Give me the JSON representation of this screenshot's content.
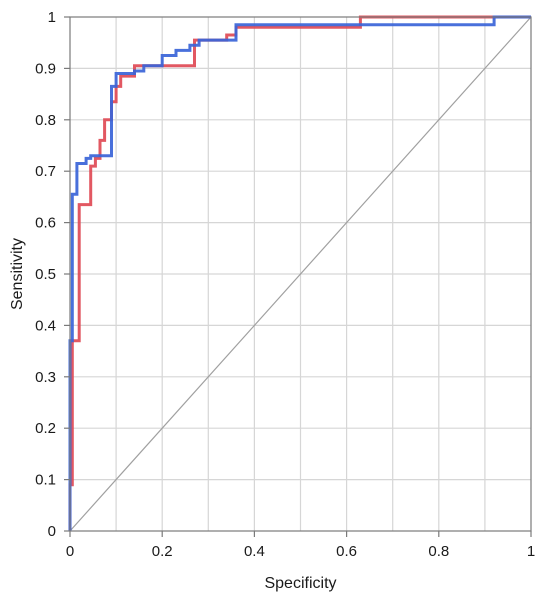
{
  "chart_data": {
    "type": "line",
    "title": "",
    "xlabel": "Specificity",
    "ylabel": "Sensitivity",
    "xlim": [
      0,
      1
    ],
    "ylim": [
      0,
      1
    ],
    "x_ticks": [
      0,
      0.2,
      0.4,
      0.6,
      0.8,
      1
    ],
    "x_tick_labels": [
      "0",
      "0.2",
      "0.4",
      "0.6",
      "0.8",
      "1"
    ],
    "y_ticks": [
      0,
      0.1,
      0.2,
      0.3,
      0.4,
      0.5,
      0.6,
      0.7,
      0.8,
      0.9,
      1
    ],
    "y_tick_labels": [
      "0",
      "0.1",
      "0.2",
      "0.3",
      "0.4",
      "0.5",
      "0.6",
      "0.7",
      "0.8",
      "0.9",
      "1"
    ],
    "grid": true,
    "legend": "none",
    "diagonal": {
      "x": [
        0,
        1
      ],
      "y": [
        0,
        1
      ],
      "color": "#a0a0a0"
    },
    "series": [
      {
        "color": "#e04a55",
        "step": true,
        "x": [
          0,
          0,
          0.005,
          0.005,
          0.02,
          0.02,
          0.045,
          0.045,
          0.055,
          0.055,
          0.065,
          0.065,
          0.075,
          0.075,
          0.09,
          0.09,
          0.1,
          0.1,
          0.11,
          0.11,
          0.14,
          0.14,
          0.27,
          0.27,
          0.34,
          0.34,
          0.36,
          0.36,
          0.63,
          0.63,
          1
        ],
        "y": [
          0,
          0.09,
          0.09,
          0.37,
          0.37,
          0.635,
          0.635,
          0.71,
          0.71,
          0.725,
          0.725,
          0.76,
          0.76,
          0.8,
          0.8,
          0.835,
          0.835,
          0.865,
          0.865,
          0.885,
          0.885,
          0.905,
          0.905,
          0.955,
          0.955,
          0.965,
          0.965,
          0.98,
          0.98,
          1,
          1
        ]
      },
      {
        "color": "#3a64d8",
        "step": true,
        "x": [
          0,
          0,
          0.005,
          0.005,
          0.015,
          0.015,
          0.035,
          0.035,
          0.045,
          0.045,
          0.09,
          0.09,
          0.1,
          0.1,
          0.14,
          0.14,
          0.16,
          0.16,
          0.2,
          0.2,
          0.23,
          0.23,
          0.26,
          0.26,
          0.28,
          0.28,
          0.36,
          0.36,
          0.92,
          0.92,
          1
        ],
        "y": [
          0,
          0.37,
          0.37,
          0.655,
          0.655,
          0.715,
          0.715,
          0.725,
          0.725,
          0.73,
          0.73,
          0.865,
          0.865,
          0.89,
          0.89,
          0.895,
          0.895,
          0.905,
          0.905,
          0.925,
          0.925,
          0.935,
          0.935,
          0.945,
          0.945,
          0.955,
          0.955,
          0.985,
          0.985,
          1,
          1
        ]
      }
    ]
  }
}
